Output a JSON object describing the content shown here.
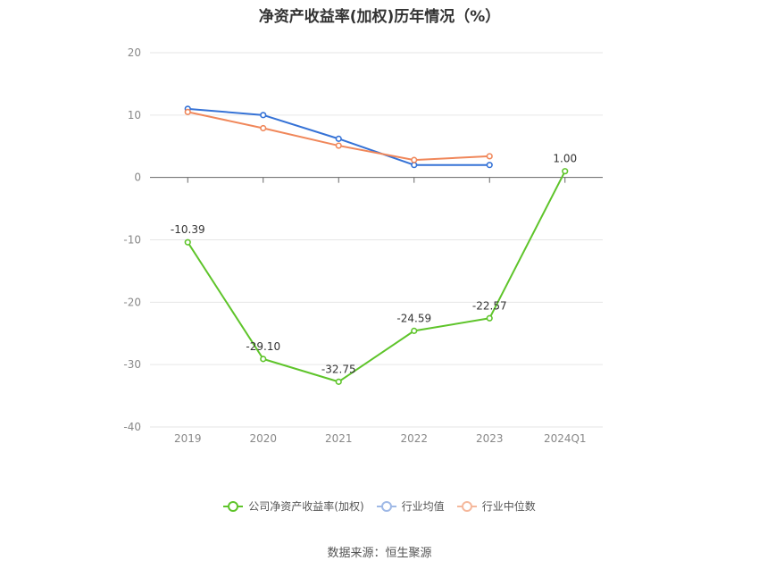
{
  "chart_data": {
    "type": "line",
    "title": "净资产收益率(加权)历年情况（%）",
    "categories": [
      "2019",
      "2020",
      "2021",
      "2022",
      "2023",
      "2024Q1"
    ],
    "ylim": [
      -40,
      20
    ],
    "yticks": [
      20,
      10,
      0,
      -10,
      -20,
      -30,
      -40
    ],
    "grid": true,
    "legend_position": "bottom",
    "series": [
      {
        "name": "公司净资产收益率(加权)",
        "color": "#5ec42a",
        "values": [
          -10.39,
          -29.1,
          -32.75,
          -24.59,
          -22.57,
          1.0
        ],
        "labels": [
          "-10.39",
          "-29.10",
          "-32.75",
          "-24.59",
          "-22.57",
          "1.00"
        ]
      },
      {
        "name": "行业均值",
        "color": "#3572d6",
        "values": [
          11.0,
          10.0,
          6.2,
          2.0,
          2.0,
          null
        ]
      },
      {
        "name": "行业中位数",
        "color": "#f0875a",
        "values": [
          10.5,
          7.9,
          5.1,
          2.8,
          3.4,
          null
        ]
      }
    ],
    "source": "数据来源：恒生聚源"
  }
}
